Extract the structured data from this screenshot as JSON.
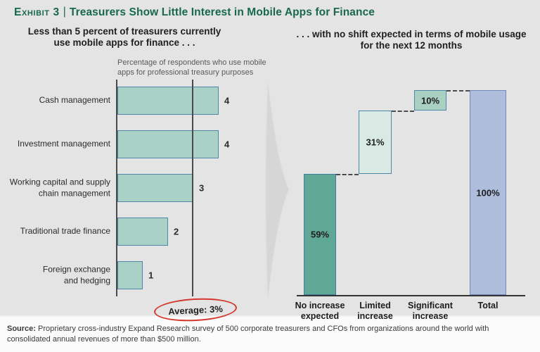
{
  "header": {
    "exhibit_label": "Exhibit 3",
    "separator": "|",
    "title": "Treasurers Show Little Interest in Mobile Apps for Finance"
  },
  "chart_data": [
    {
      "type": "bar",
      "orientation": "horizontal",
      "title": "Less than 5 percent of treasurers currently use mobile apps for finance . . .",
      "axis_note": "Percentage of respondents who use mobile apps for professional treasury purposes",
      "categories": [
        "Cash management",
        "Investment management",
        "Working capital and supply chain management",
        "Traditional trade finance",
        "Foreign exchange and hedging"
      ],
      "values": [
        4,
        4,
        3,
        2,
        1
      ],
      "value_labels": [
        "4",
        "4",
        "3",
        "2",
        "1"
      ],
      "xlim": [
        0,
        4
      ],
      "grid": false,
      "average": 3,
      "average_annotation": "Average: 3%",
      "bar_fill": "#aad1c5",
      "bar_border": "#4d87a7"
    },
    {
      "type": "waterfall",
      "title": ". . . with no shift expected in terms of mobile usage for the next 12 months",
      "categories": [
        "No increase expected",
        "Limited increase",
        "Significant increase",
        "Total"
      ],
      "values": [
        59,
        31,
        10,
        100
      ],
      "bar_labels": [
        "59%",
        "31%",
        "10%",
        "100%"
      ],
      "is_total": [
        false,
        false,
        false,
        true
      ],
      "ylim": [
        0,
        100
      ],
      "grid": false,
      "bar_fills": [
        "#5fa896",
        "#d9eae4",
        "#a9d0c3",
        "#afbddc"
      ],
      "bar_borders": [
        "#3d7d9e",
        "#4d87a7",
        "#4d87a7",
        "#7287ba"
      ]
    }
  ],
  "footer": {
    "source_label": "Source:",
    "source_text": "Proprietary cross-industry Expand Research survey of 500 corporate treasurers and CFOs from organizations around the world with consolidated annual revenues of more than $500 million."
  },
  "colors": {
    "background": "#e4e4e4",
    "footer_background": "#fbfbfb",
    "title_green": "#17684e",
    "average_circle_red": "#d4392e"
  }
}
